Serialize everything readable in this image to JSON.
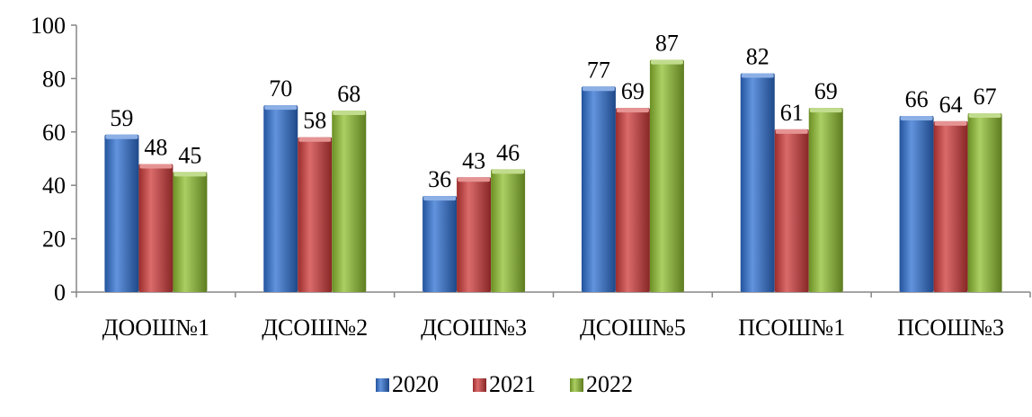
{
  "chart_data": {
    "type": "bar",
    "title": "",
    "xlabel": "",
    "ylabel": "",
    "ylim": [
      0,
      100
    ],
    "yticks": [
      0,
      20,
      40,
      60,
      80,
      100
    ],
    "grid": false,
    "legend_position": "bottom",
    "categories": [
      "ДООШ№1",
      "ДСОШ№2",
      "ДСОШ№3",
      "ДСОШ№5",
      "ПСОШ№1",
      "ПСОШ№3"
    ],
    "series": [
      {
        "name": "2020",
        "color": "#2e6fd1",
        "values": [
          59,
          70,
          36,
          77,
          82,
          66
        ]
      },
      {
        "name": "2021",
        "color": "#cf3a3a",
        "values": [
          48,
          58,
          43,
          69,
          61,
          64
        ]
      },
      {
        "name": "2022",
        "color": "#8fbf2f",
        "values": [
          45,
          68,
          46,
          87,
          69,
          67
        ]
      }
    ],
    "data_labels": true
  }
}
